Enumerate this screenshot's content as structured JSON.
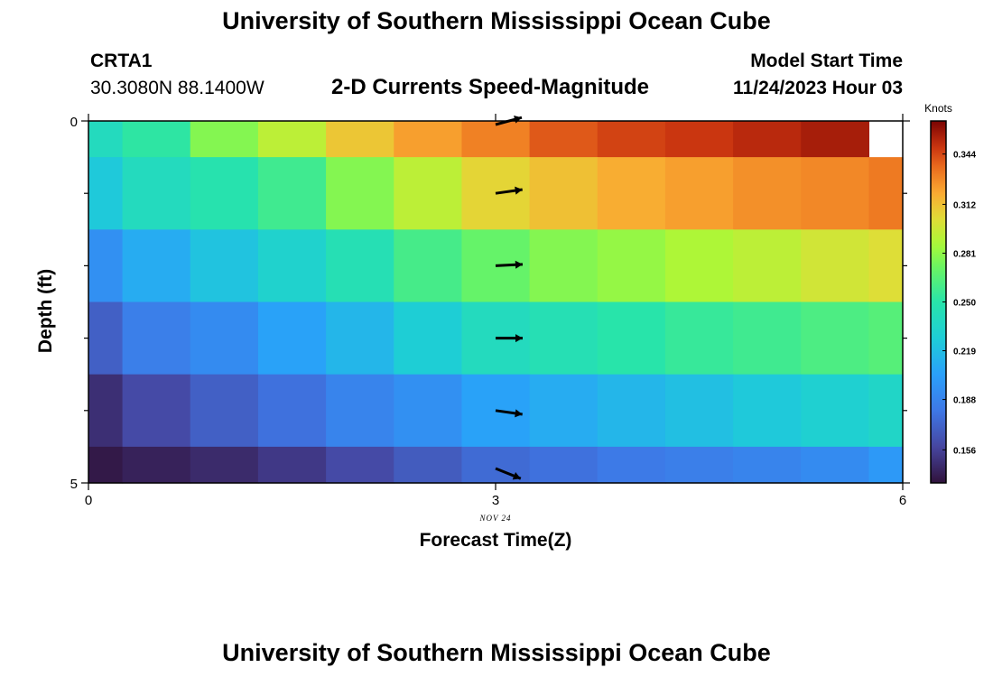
{
  "header": {
    "title": "University of Southern Mississippi Ocean Cube",
    "station": "CRTA1",
    "coords": "30.3080N  88.1400W",
    "subtitle": "2-D Currents Speed-Magnitude",
    "model_start_label": "Model Start Time",
    "model_start_value": "11/24/2023 Hour 03"
  },
  "footer": {
    "title": "University of Southern Mississippi Ocean Cube"
  },
  "chart_data": {
    "type": "heatmap",
    "xlabel": "Forecast Time(Z)",
    "ylabel": "Depth (ft)",
    "x_date_label": "NOV 24",
    "xlim": [
      0,
      6
    ],
    "ylim": [
      5,
      0
    ],
    "x_ticks": [
      "0",
      "3",
      "6"
    ],
    "y_ticks": [
      "0",
      "5"
    ],
    "colorbar": {
      "label": "Knots",
      "range": [
        0.135,
        0.365
      ],
      "ticks": [
        "0.344",
        "0.312",
        "0.281",
        "0.250",
        "0.219",
        "0.188",
        "0.156"
      ]
    },
    "time_edges": [
      0,
      0.25,
      0.75,
      1.25,
      1.75,
      2.25,
      2.75,
      3.25,
      3.75,
      4.25,
      4.75,
      5.25,
      5.75,
      6
    ],
    "depth_bands": [
      [
        0,
        0.5
      ],
      [
        0.5,
        1.5
      ],
      [
        1.5,
        2.5
      ],
      [
        2.5,
        3.5
      ],
      [
        3.5,
        4.5
      ],
      [
        4.5,
        5
      ]
    ],
    "values": [
      [
        0.24,
        0.252,
        0.278,
        0.292,
        0.31,
        0.322,
        0.33,
        0.34,
        0.345,
        0.348,
        0.352,
        0.356,
        null
      ],
      [
        0.225,
        0.24,
        0.248,
        0.258,
        0.278,
        0.292,
        0.305,
        0.312,
        0.318,
        0.322,
        0.326,
        0.328,
        0.332
      ],
      [
        0.195,
        0.21,
        0.222,
        0.232,
        0.245,
        0.26,
        0.27,
        0.278,
        0.282,
        0.288,
        0.292,
        0.298,
        0.302
      ],
      [
        0.17,
        0.185,
        0.192,
        0.205,
        0.215,
        0.228,
        0.24,
        0.245,
        0.25,
        0.255,
        0.258,
        0.262,
        0.265
      ],
      [
        0.148,
        0.16,
        0.17,
        0.178,
        0.188,
        0.195,
        0.205,
        0.21,
        0.215,
        0.22,
        0.225,
        0.23,
        0.235
      ],
      [
        0.138,
        0.142,
        0.146,
        0.152,
        0.16,
        0.168,
        0.175,
        0.178,
        0.182,
        0.185,
        0.188,
        0.192,
        0.2
      ]
    ],
    "vectors": [
      {
        "time": 3,
        "depth": 0,
        "angle_deg": -15
      },
      {
        "time": 3,
        "depth": 1,
        "angle_deg": -8
      },
      {
        "time": 3,
        "depth": 2,
        "angle_deg": -3
      },
      {
        "time": 3,
        "depth": 3,
        "angle_deg": 0
      },
      {
        "time": 3,
        "depth": 4,
        "angle_deg": 8
      },
      {
        "time": 3,
        "depth": 4.8,
        "angle_deg": 22
      }
    ]
  }
}
